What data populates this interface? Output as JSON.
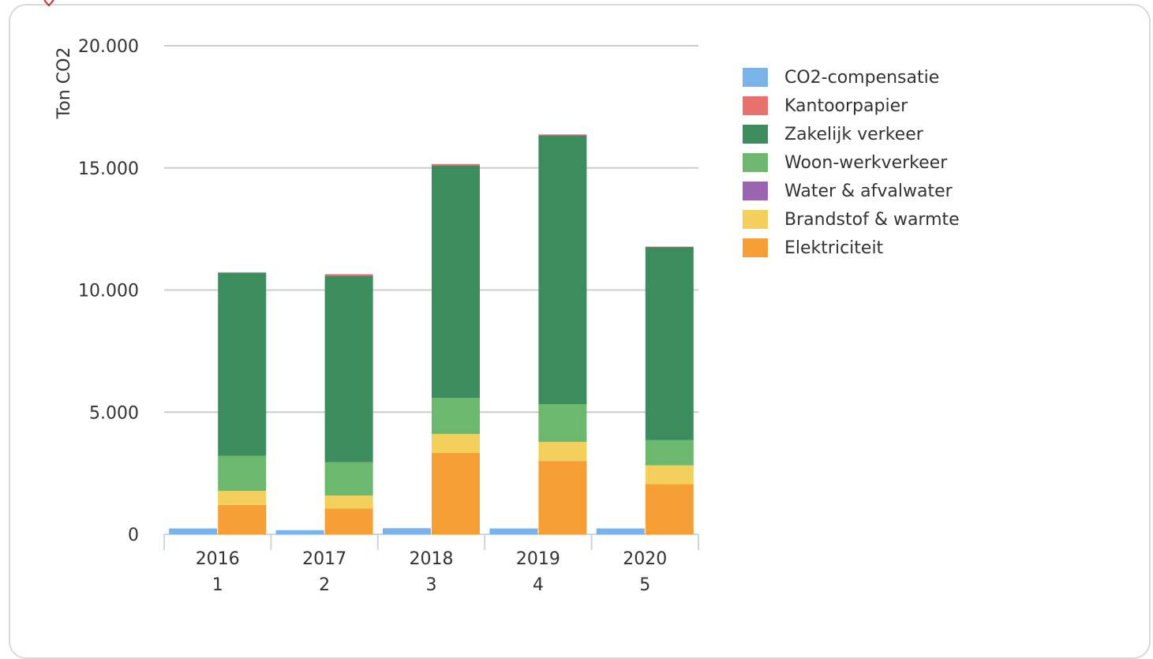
{
  "chart_data": {
    "type": "bar",
    "stacked": true,
    "ylabel": "Ton CO2",
    "ylim": [
      0,
      20000
    ],
    "yticks": [
      0,
      5000,
      10000,
      15000,
      20000
    ],
    "ytick_labels": [
      "0",
      "5.000",
      "10.000",
      "15.000",
      "20.000"
    ],
    "grid": true,
    "legend_position": "right",
    "categories": [
      "2016",
      "2017",
      "2018",
      "2019",
      "2020"
    ],
    "category_sublabels": [
      "1",
      "2",
      "3",
      "4",
      "5"
    ],
    "series": [
      {
        "name": "Elektriciteit",
        "color": "#f59f36",
        "values": [
          1200,
          1050,
          3330,
          3000,
          2050
        ]
      },
      {
        "name": "Brandstof & warmte",
        "color": "#f2d05b",
        "values": [
          580,
          540,
          780,
          780,
          770
        ]
      },
      {
        "name": "Water & afvalwater",
        "color": "#9b64b0",
        "values": [
          10,
          10,
          10,
          10,
          10
        ]
      },
      {
        "name": "Woon-werkverkeer",
        "color": "#6cb86e",
        "values": [
          1420,
          1350,
          1470,
          1540,
          1030
        ]
      },
      {
        "name": "Zakelijk verkeer",
        "color": "#3d8c5e",
        "values": [
          7490,
          7640,
          9510,
          11010,
          7910
        ]
      },
      {
        "name": "Kantoorpapier",
        "color": "#e8716d",
        "values": [
          30,
          60,
          60,
          30,
          10
        ]
      },
      {
        "name": "CO2-compensatie",
        "color": "#7ab3ea",
        "values": [
          240,
          170,
          250,
          240,
          240
        ]
      }
    ]
  },
  "legend_order": [
    "CO2-compensatie",
    "Kantoorpapier",
    "Zakelijk verkeer",
    "Woon-werkverkeer",
    "Water & afvalwater",
    "Brandstof & warmte",
    "Elektriciteit"
  ]
}
